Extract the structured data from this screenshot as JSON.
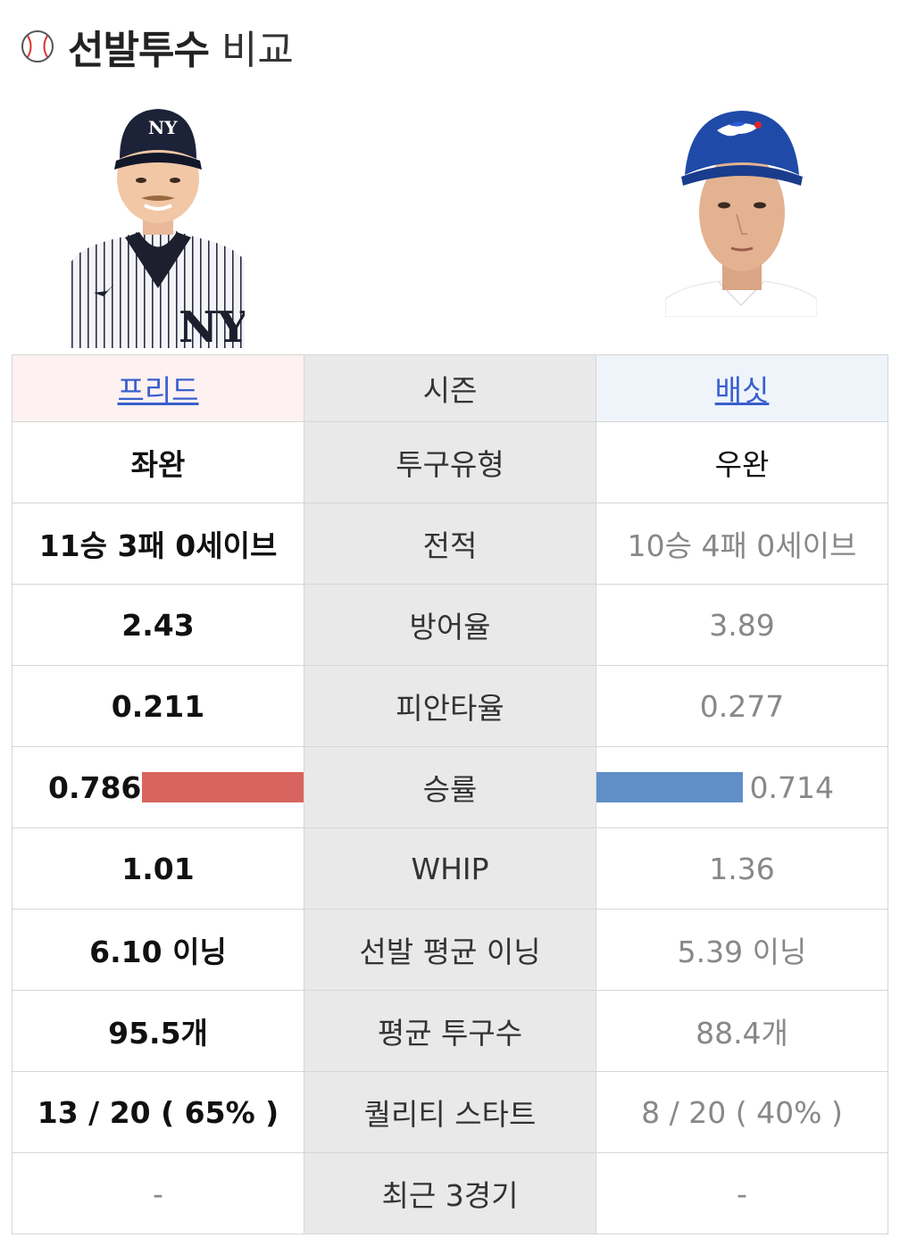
{
  "header": {
    "title": "선발투수",
    "subtitle": "비교",
    "icon": "baseball-icon"
  },
  "players": {
    "left": {
      "name": "프리드",
      "photo": "yankees-pitcher-photo",
      "accent": "#d9645f"
    },
    "right": {
      "name": "배싯",
      "photo": "bluejays-pitcher-photo",
      "accent": "#5f8fc6"
    }
  },
  "season_label": "시즌",
  "rows": [
    {
      "label": "투구유형",
      "left": "좌완",
      "right": "우완"
    },
    {
      "label": "전적",
      "left": "11승 3패 0세이브",
      "right": "10승 4패 0세이브"
    },
    {
      "label": "방어율",
      "left": "2.43",
      "right": "3.89"
    },
    {
      "label": "피안타율",
      "left": "0.211",
      "right": "0.277"
    },
    {
      "label": "승률",
      "left": "0.786",
      "right": "0.714",
      "left_fraction": 0.786,
      "right_fraction": 0.714
    },
    {
      "label": "WHIP",
      "left": "1.01",
      "right": "1.36"
    },
    {
      "label": "선발 평균 이닝",
      "left": "6.10 이닝",
      "right": "5.39 이닝"
    },
    {
      "label": "평균 투구수",
      "left": "95.5개",
      "right": "88.4개"
    },
    {
      "label": "퀄리티 스타트",
      "left": "13 / 20 ( 65% )",
      "right": "8 / 20 ( 40% )"
    },
    {
      "label": "최근 3경기",
      "left": "-",
      "right": "-"
    }
  ]
}
